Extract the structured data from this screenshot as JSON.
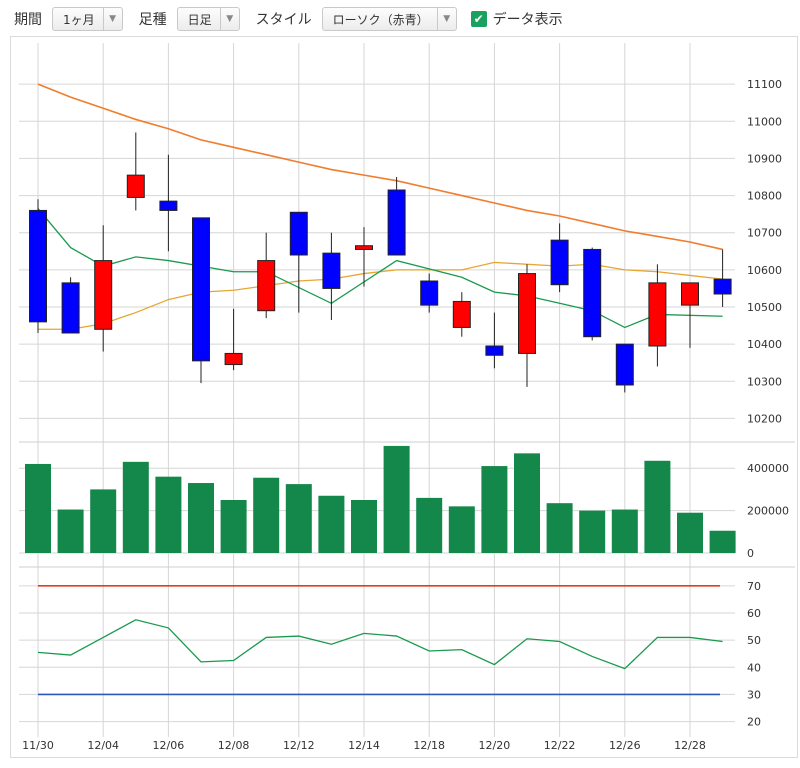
{
  "toolbar": {
    "period_label": "期間",
    "period_value": "1ヶ月",
    "bar_label": "足種",
    "bar_value": "日足",
    "style_label": "スタイル",
    "style_value": "ローソク（赤青）",
    "data_display_label": "データ表示",
    "data_display_checked": true
  },
  "chart_data": [
    {
      "type": "candlestick",
      "ylim": [
        10150,
        11200
      ],
      "yticks": [
        10200,
        10300,
        10400,
        10500,
        10600,
        10700,
        10800,
        10900,
        11000,
        11100
      ],
      "up_color": "#ff0000",
      "down_color": "#0000ff",
      "x_labels": [
        "11/30",
        "12/04",
        "12/06",
        "12/08",
        "12/12",
        "12/14",
        "12/18",
        "12/20",
        "12/22",
        "12/26",
        "12/28"
      ],
      "x_label_index": [
        0,
        2,
        4,
        6,
        8,
        10,
        12,
        14,
        16,
        18,
        20
      ],
      "candles": [
        {
          "o": 10760,
          "h": 10790,
          "l": 10430,
          "c": 10460
        },
        {
          "o": 10565,
          "h": 10580,
          "l": 10430,
          "c": 10430
        },
        {
          "o": 10440,
          "h": 10720,
          "l": 10380,
          "c": 10625
        },
        {
          "o": 10795,
          "h": 10970,
          "l": 10760,
          "c": 10855
        },
        {
          "o": 10785,
          "h": 10910,
          "l": 10650,
          "c": 10760
        },
        {
          "o": 10740,
          "h": 10740,
          "l": 10295,
          "c": 10355
        },
        {
          "o": 10345,
          "h": 10495,
          "l": 10330,
          "c": 10375
        },
        {
          "o": 10490,
          "h": 10700,
          "l": 10470,
          "c": 10625
        },
        {
          "o": 10755,
          "h": 10755,
          "l": 10485,
          "c": 10640
        },
        {
          "o": 10645,
          "h": 10700,
          "l": 10465,
          "c": 10550
        },
        {
          "o": 10655,
          "h": 10715,
          "l": 10555,
          "c": 10665
        },
        {
          "o": 10815,
          "h": 10850,
          "l": 10640,
          "c": 10640
        },
        {
          "o": 10570,
          "h": 10590,
          "l": 10485,
          "c": 10505
        },
        {
          "o": 10445,
          "h": 10540,
          "l": 10420,
          "c": 10515
        },
        {
          "o": 10395,
          "h": 10485,
          "l": 10335,
          "c": 10370
        },
        {
          "o": 10375,
          "h": 10615,
          "l": 10285,
          "c": 10590
        },
        {
          "o": 10680,
          "h": 10725,
          "l": 10540,
          "c": 10560
        },
        {
          "o": 10655,
          "h": 10660,
          "l": 10410,
          "c": 10420
        },
        {
          "o": 10400,
          "h": 10400,
          "l": 10270,
          "c": 10290
        },
        {
          "o": 10395,
          "h": 10615,
          "l": 10340,
          "c": 10565
        },
        {
          "o": 10505,
          "h": 10565,
          "l": 10390,
          "c": 10565
        },
        {
          "o": 10575,
          "h": 10655,
          "l": 10500,
          "c": 10535
        }
      ],
      "ma_short": {
        "color": "#1a9a4e",
        "points": [
          [
            0,
            10765
          ],
          [
            1,
            10660
          ],
          [
            2,
            10610
          ],
          [
            3,
            10635
          ],
          [
            4,
            10625
          ],
          [
            6,
            10595
          ],
          [
            7,
            10595
          ],
          [
            9,
            10510
          ],
          [
            11,
            10625
          ],
          [
            13,
            10580
          ],
          [
            14,
            10540
          ],
          [
            15,
            10530
          ],
          [
            16,
            10510
          ],
          [
            17,
            10490
          ],
          [
            18,
            10445
          ],
          [
            19,
            10480
          ],
          [
            21,
            10475
          ]
        ]
      },
      "ma_mid": {
        "color": "#e6a632",
        "points": [
          [
            0,
            10440
          ],
          [
            1,
            10440
          ],
          [
            2,
            10455
          ],
          [
            3,
            10485
          ],
          [
            4,
            10520
          ],
          [
            5,
            10540
          ],
          [
            6,
            10545
          ],
          [
            8,
            10570
          ],
          [
            9,
            10575
          ],
          [
            10,
            10590
          ],
          [
            11,
            10600
          ],
          [
            12,
            10600
          ],
          [
            13,
            10600
          ],
          [
            14,
            10620
          ],
          [
            16,
            10610
          ],
          [
            17,
            10615
          ],
          [
            18,
            10600
          ],
          [
            19,
            10595
          ],
          [
            20,
            10585
          ],
          [
            21,
            10575
          ]
        ]
      },
      "ma_long": {
        "color": "#f07c2c",
        "points": [
          [
            0,
            11100
          ],
          [
            1,
            11065
          ],
          [
            2,
            11035
          ],
          [
            3,
            11005
          ],
          [
            4,
            10980
          ],
          [
            5,
            10950
          ],
          [
            6,
            10930
          ],
          [
            7,
            10910
          ],
          [
            8,
            10890
          ],
          [
            9,
            10870
          ],
          [
            10,
            10855
          ],
          [
            11,
            10840
          ],
          [
            12,
            10820
          ],
          [
            13,
            10800
          ],
          [
            14,
            10780
          ],
          [
            15,
            10760
          ],
          [
            16,
            10745
          ],
          [
            17,
            10725
          ],
          [
            18,
            10705
          ],
          [
            19,
            10690
          ],
          [
            20,
            10675
          ],
          [
            21,
            10655
          ]
        ]
      }
    },
    {
      "type": "bar",
      "ylim": [
        0,
        500000
      ],
      "yticks": [
        0,
        200000,
        400000
      ],
      "color": "#14874a",
      "values": [
        420000,
        205000,
        300000,
        430000,
        360000,
        330000,
        250000,
        355000,
        325000,
        270000,
        250000,
        505000,
        260000,
        220000,
        410000,
        470000,
        235000,
        200000,
        205000,
        435000,
        190000,
        105000
      ]
    },
    {
      "type": "line",
      "ylim": [
        18,
        74
      ],
      "yticks": [
        20,
        30,
        40,
        50,
        60,
        70
      ],
      "upper_level": 70,
      "lower_level": 30,
      "upper_color": "#e43b1c",
      "lower_color": "#2a5bb8",
      "color": "#1a9a4e",
      "points": [
        [
          0,
          45.5
        ],
        [
          1,
          44.5
        ],
        [
          2,
          51
        ],
        [
          3,
          57.5
        ],
        [
          4,
          54.5
        ],
        [
          5,
          42
        ],
        [
          6,
          42.5
        ],
        [
          7,
          51
        ],
        [
          8,
          51.5
        ],
        [
          9,
          48.5
        ],
        [
          10,
          52.5
        ],
        [
          11,
          51.5
        ],
        [
          12,
          46
        ],
        [
          13,
          46.5
        ],
        [
          14,
          41
        ],
        [
          15,
          50.5
        ],
        [
          16,
          49.5
        ],
        [
          17,
          44
        ],
        [
          18,
          39.5
        ],
        [
          19,
          51
        ],
        [
          20,
          51
        ],
        [
          21,
          49.5
        ]
      ]
    }
  ]
}
